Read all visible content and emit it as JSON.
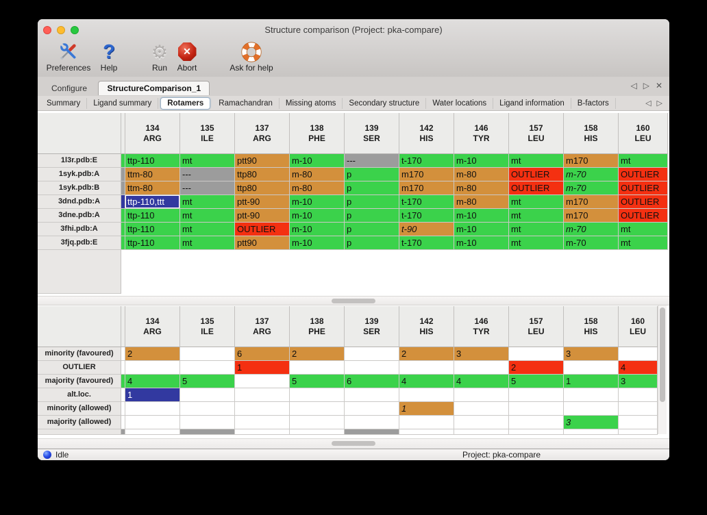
{
  "window": {
    "title": "Structure comparison (Project: pka-compare)"
  },
  "toolbar": {
    "items": [
      {
        "label": "Preferences",
        "icon": "crossed-tools-icon"
      },
      {
        "label": "Help",
        "icon": "question-mark-icon"
      },
      {
        "label": "Run",
        "icon": "gear-icon"
      },
      {
        "label": "Abort",
        "icon": "stop-octagon-icon"
      },
      {
        "label": "Ask for help",
        "icon": "lifebuoy-icon"
      }
    ]
  },
  "tabs": {
    "items": [
      {
        "label": "Configure",
        "active": false
      },
      {
        "label": "StructureComparison_1",
        "active": true
      }
    ],
    "controls": [
      "scroll-left-icon",
      "scroll-right-icon",
      "close-icon"
    ]
  },
  "subtabs": {
    "items": [
      "Summary",
      "Ligand summary",
      "Rotamers",
      "Ramachandran",
      "Missing atoms",
      "Secondary structure",
      "Water locations",
      "Ligand information",
      "B-factors"
    ],
    "active": "Rotamers",
    "controls": [
      "scroll-left-icon",
      "scroll-right-icon"
    ]
  },
  "colors": {
    "green": "#3bd24b",
    "orange": "#d3903c",
    "red": "#f43011",
    "gray": "#9c9c9c",
    "blue": "#3239a0"
  },
  "columns": [
    {
      "num": "134",
      "res": "ARG"
    },
    {
      "num": "135",
      "res": "ILE"
    },
    {
      "num": "137",
      "res": "ARG"
    },
    {
      "num": "138",
      "res": "PHE"
    },
    {
      "num": "139",
      "res": "SER"
    },
    {
      "num": "142",
      "res": "HIS"
    },
    {
      "num": "146",
      "res": "TYR"
    },
    {
      "num": "157",
      "res": "LEU"
    },
    {
      "num": "158",
      "res": "HIS"
    },
    {
      "num": "160",
      "res": "LEU"
    }
  ],
  "top_table": {
    "rows": [
      {
        "label": "1l3r.pdb:E",
        "strip": "green",
        "cells": [
          {
            "t": "ttp-110",
            "c": "green"
          },
          {
            "t": "mt",
            "c": "green"
          },
          {
            "t": "ptt90",
            "c": "orange"
          },
          {
            "t": "m-10",
            "c": "green"
          },
          {
            "t": "---",
            "c": "gray"
          },
          {
            "t": "t-170",
            "c": "green"
          },
          {
            "t": "m-10",
            "c": "green"
          },
          {
            "t": "mt",
            "c": "green"
          },
          {
            "t": "m170",
            "c": "orange"
          },
          {
            "t": "mt",
            "c": "green"
          }
        ]
      },
      {
        "label": "1syk.pdb:A",
        "strip": "gray",
        "cells": [
          {
            "t": "ttm-80",
            "c": "orange"
          },
          {
            "t": "---",
            "c": "gray"
          },
          {
            "t": "ttp80",
            "c": "orange"
          },
          {
            "t": "m-80",
            "c": "orange"
          },
          {
            "t": "p",
            "c": "green"
          },
          {
            "t": "m170",
            "c": "orange"
          },
          {
            "t": "m-80",
            "c": "orange"
          },
          {
            "t": "OUTLIER",
            "c": "red"
          },
          {
            "t": "m-70",
            "c": "green",
            "i": true
          },
          {
            "t": "OUTLIER",
            "c": "red"
          }
        ]
      },
      {
        "label": "1syk.pdb:B",
        "strip": "gray",
        "cells": [
          {
            "t": "ttm-80",
            "c": "orange"
          },
          {
            "t": "---",
            "c": "gray"
          },
          {
            "t": "ttp80",
            "c": "orange"
          },
          {
            "t": "m-80",
            "c": "orange"
          },
          {
            "t": "p",
            "c": "green"
          },
          {
            "t": "m170",
            "c": "orange"
          },
          {
            "t": "m-80",
            "c": "orange"
          },
          {
            "t": "OUTLIER",
            "c": "red"
          },
          {
            "t": "m-70",
            "c": "green",
            "i": true
          },
          {
            "t": "OUTLIER",
            "c": "red"
          }
        ]
      },
      {
        "label": "3dnd.pdb:A",
        "strip": "blue",
        "cells": [
          {
            "t": "ttp-110,ttt",
            "c": "blue",
            "sel": true
          },
          {
            "t": "mt",
            "c": "green"
          },
          {
            "t": "ptt-90",
            "c": "orange"
          },
          {
            "t": "m-10",
            "c": "green"
          },
          {
            "t": "p",
            "c": "green"
          },
          {
            "t": "t-170",
            "c": "green"
          },
          {
            "t": "m-80",
            "c": "orange"
          },
          {
            "t": "mt",
            "c": "green"
          },
          {
            "t": "m170",
            "c": "orange"
          },
          {
            "t": "OUTLIER",
            "c": "red"
          }
        ]
      },
      {
        "label": "3dne.pdb:A",
        "strip": "green",
        "cells": [
          {
            "t": "ttp-110",
            "c": "green"
          },
          {
            "t": "mt",
            "c": "green"
          },
          {
            "t": "ptt-90",
            "c": "orange"
          },
          {
            "t": "m-10",
            "c": "green"
          },
          {
            "t": "p",
            "c": "green"
          },
          {
            "t": "t-170",
            "c": "green"
          },
          {
            "t": "m-10",
            "c": "green"
          },
          {
            "t": "mt",
            "c": "green"
          },
          {
            "t": "m170",
            "c": "orange"
          },
          {
            "t": "OUTLIER",
            "c": "red"
          }
        ]
      },
      {
        "label": "3fhi.pdb:A",
        "strip": "green",
        "cells": [
          {
            "t": "ttp-110",
            "c": "green"
          },
          {
            "t": "mt",
            "c": "green"
          },
          {
            "t": "OUTLIER",
            "c": "red"
          },
          {
            "t": "m-10",
            "c": "green"
          },
          {
            "t": "p",
            "c": "green"
          },
          {
            "t": "t-90",
            "c": "orange",
            "i": true
          },
          {
            "t": "m-10",
            "c": "green"
          },
          {
            "t": "mt",
            "c": "green"
          },
          {
            "t": "m-70",
            "c": "green",
            "i": true
          },
          {
            "t": "mt",
            "c": "green"
          }
        ]
      },
      {
        "label": "3fjq.pdb:E",
        "strip": "green",
        "cells": [
          {
            "t": "ttp-110",
            "c": "green"
          },
          {
            "t": "mt",
            "c": "green"
          },
          {
            "t": "ptt90",
            "c": "orange"
          },
          {
            "t": "m-10",
            "c": "green"
          },
          {
            "t": "p",
            "c": "green"
          },
          {
            "t": "t-170",
            "c": "green"
          },
          {
            "t": "m-10",
            "c": "green"
          },
          {
            "t": "mt",
            "c": "green"
          },
          {
            "t": "m-70",
            "c": "green"
          },
          {
            "t": "mt",
            "c": "green"
          }
        ]
      }
    ]
  },
  "bottom_table": {
    "rows": [
      {
        "label": "minority (favoured)",
        "strip": "",
        "cells": [
          {
            "t": "2",
            "c": "orange"
          },
          {},
          {
            "t": "6",
            "c": "orange"
          },
          {
            "t": "2",
            "c": "orange"
          },
          {},
          {
            "t": "2",
            "c": "orange"
          },
          {
            "t": "3",
            "c": "orange"
          },
          {},
          {
            "t": "3",
            "c": "orange"
          },
          {}
        ]
      },
      {
        "label": "OUTLIER",
        "strip": "",
        "cells": [
          {},
          {},
          {
            "t": "1",
            "c": "red"
          },
          {},
          {},
          {},
          {},
          {
            "t": "2",
            "c": "red"
          },
          {},
          {
            "t": "4",
            "c": "red"
          }
        ]
      },
      {
        "label": "majority (favoured)",
        "strip": "green",
        "cells": [
          {
            "t": "4",
            "c": "green"
          },
          {
            "t": "5",
            "c": "green"
          },
          {},
          {
            "t": "5",
            "c": "green"
          },
          {
            "t": "6",
            "c": "green"
          },
          {
            "t": "4",
            "c": "green"
          },
          {
            "t": "4",
            "c": "green"
          },
          {
            "t": "5",
            "c": "green"
          },
          {
            "t": "1",
            "c": "green"
          },
          {
            "t": "3",
            "c": "green"
          }
        ]
      },
      {
        "label": "alt.loc.",
        "strip": "",
        "cells": [
          {
            "t": "1",
            "c": "blue"
          },
          {},
          {},
          {},
          {},
          {},
          {},
          {},
          {},
          {}
        ]
      },
      {
        "label": "minority (allowed)",
        "strip": "",
        "cells": [
          {},
          {},
          {},
          {},
          {},
          {
            "t": "1",
            "c": "orange",
            "i": true
          },
          {},
          {},
          {},
          {}
        ]
      },
      {
        "label": "majority (allowed)",
        "strip": "",
        "cells": [
          {},
          {},
          {},
          {},
          {},
          {},
          {},
          {},
          {
            "t": "3",
            "c": "green",
            "i": true
          },
          {}
        ]
      },
      {
        "label": "",
        "strip": "gray",
        "partial": true,
        "cells": [
          {},
          {
            "c": "gray"
          },
          {},
          {},
          {
            "c": "gray"
          },
          {},
          {},
          {},
          {},
          {}
        ]
      }
    ]
  },
  "statusbar": {
    "state": "Idle",
    "project": "Project: pka-compare"
  }
}
